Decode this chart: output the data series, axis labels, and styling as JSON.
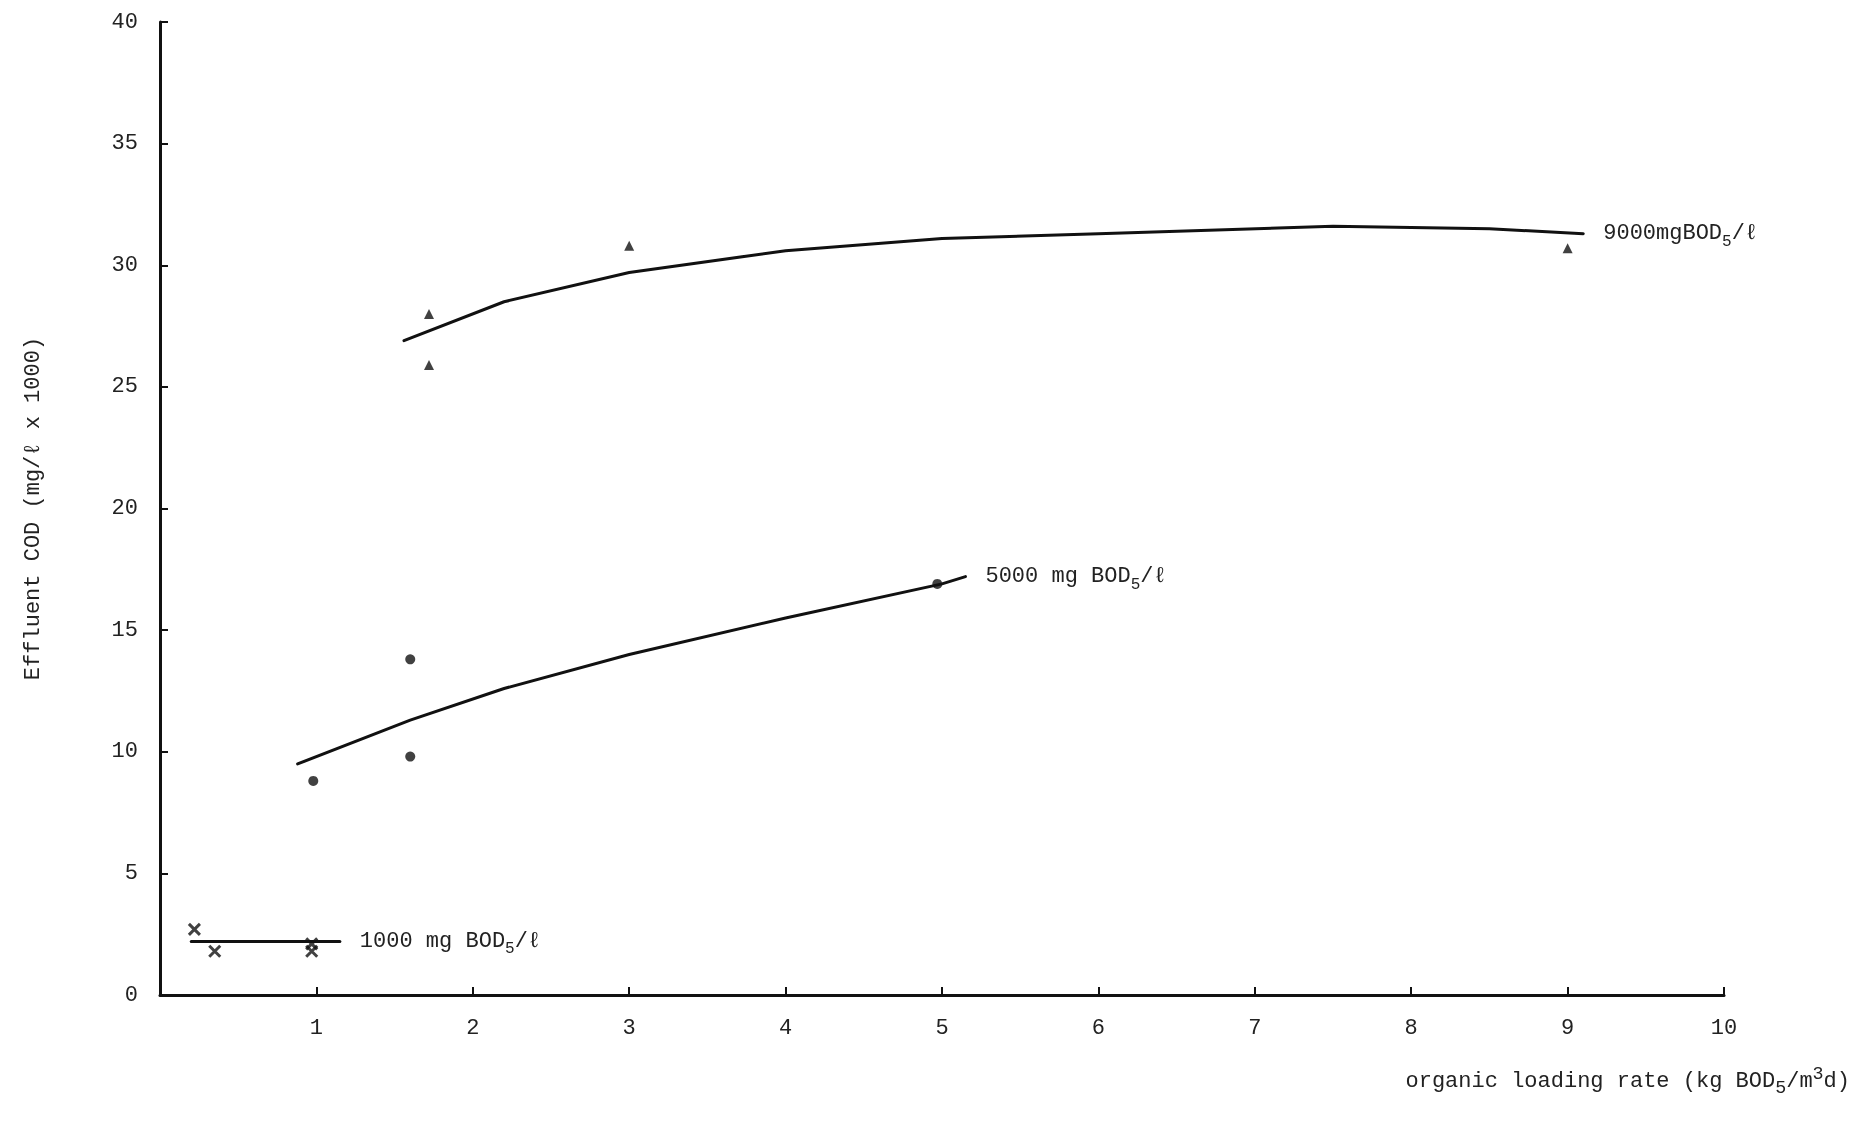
{
  "chart_data": {
    "type": "scatter",
    "xlabel": "organic loading rate (kg BOD$_{5}$/m$^{3}$d)",
    "ylabel": "Effluent COD (mg/ℓ x 1000)",
    "xlim": [
      0,
      10
    ],
    "xticks": [
      1,
      2,
      3,
      4,
      5,
      6,
      7,
      8,
      9,
      10
    ],
    "ylim": [
      0,
      40
    ],
    "yticks": [
      0,
      5,
      10,
      15,
      20,
      25,
      30,
      35,
      40
    ],
    "grid": false,
    "legend": false,
    "series": [
      {
        "marker": "triangle",
        "color": "#111111",
        "x": [
          1.72,
          1.72,
          3.0,
          9.0
        ],
        "values": [
          28.0,
          25.9,
          30.8,
          30.7
        ]
      },
      {
        "marker": "circle",
        "color": "#111111",
        "x": [
          0.98,
          1.6,
          1.6,
          4.97
        ],
        "values": [
          8.8,
          13.8,
          9.8,
          16.9
        ]
      },
      {
        "marker": "cross",
        "color": "#111111",
        "x": [
          0.22,
          0.35,
          0.97,
          0.97
        ],
        "values": [
          2.7,
          1.8,
          2.1,
          1.8
        ]
      },
      {
        "type": "line",
        "name": "9000mgBOD$_{5}$/ℓ",
        "color": "#111111",
        "marker": "none",
        "x": [
          1.56,
          2.2,
          3.0,
          4.0,
          5.0,
          6.0,
          7.5,
          8.5,
          9.1
        ],
        "values": [
          26.9,
          28.5,
          29.7,
          30.6,
          31.1,
          31.3,
          31.6,
          31.5,
          31.3
        ]
      },
      {
        "type": "line",
        "name": "5000 mg BOD$_{5}$/ℓ",
        "color": "#111111",
        "marker": "none",
        "x": [
          0.88,
          1.6,
          2.2,
          3.0,
          4.0,
          5.0,
          5.15
        ],
        "values": [
          9.5,
          11.3,
          12.6,
          14.0,
          15.5,
          16.9,
          17.2
        ]
      },
      {
        "type": "line",
        "name": "1000 mg BOD$_{5}$/ℓ",
        "color": "#111111",
        "marker": "none",
        "x": [
          0.2,
          1.15
        ],
        "values": [
          2.2,
          2.2
        ]
      }
    ]
  }
}
